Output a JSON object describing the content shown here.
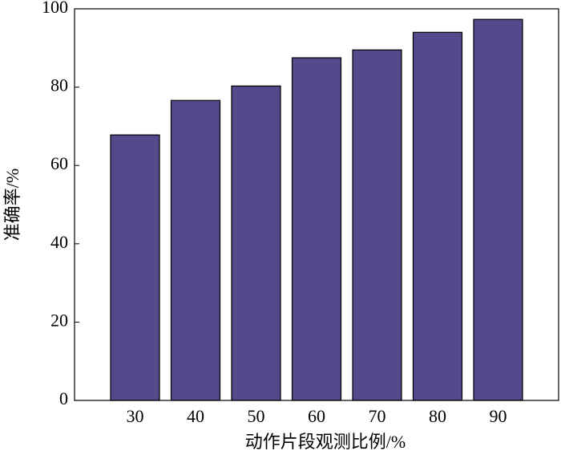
{
  "chart_data": {
    "type": "bar",
    "x_label": "动作片段观测比例/%",
    "y_label": "准确率/%",
    "categories": [
      "30",
      "40",
      "50",
      "60",
      "70",
      "80",
      "90"
    ],
    "values": [
      67.8,
      76.6,
      80.3,
      87.5,
      89.5,
      94.0,
      97.3
    ],
    "color": "#524a8a",
    "ylim": [
      0,
      100
    ],
    "yticks": [
      0,
      20,
      40,
      60,
      80,
      100
    ]
  }
}
